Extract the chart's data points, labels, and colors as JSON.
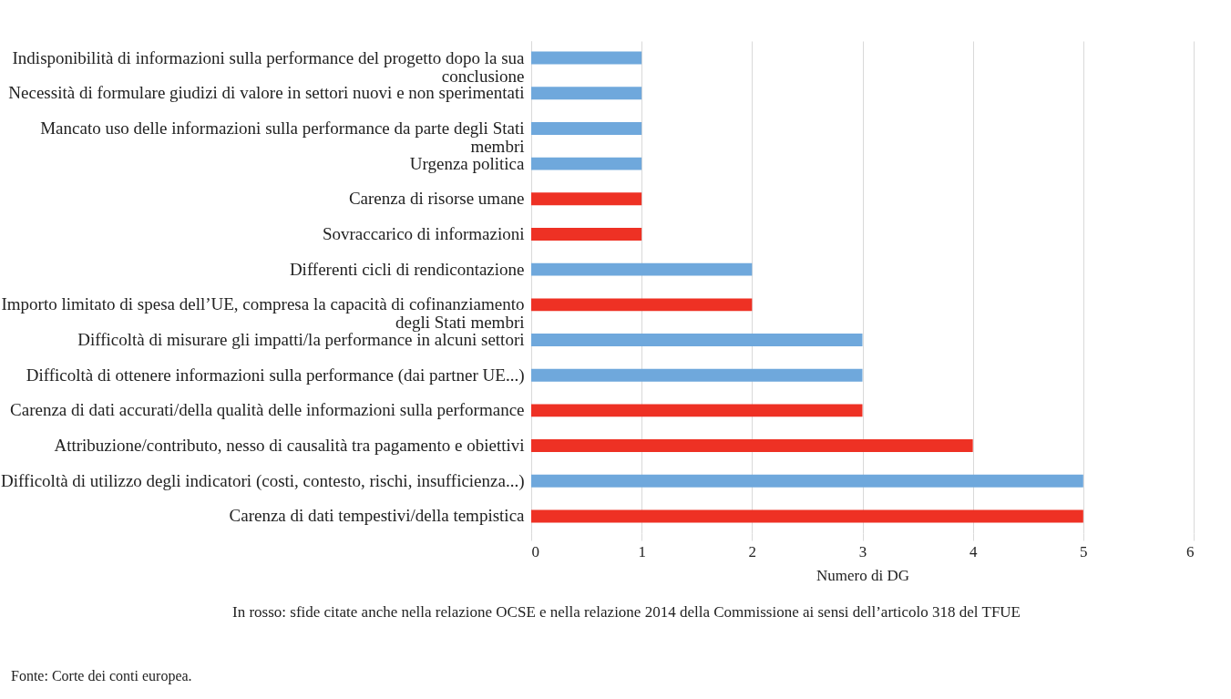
{
  "chart_data": {
    "type": "bar",
    "orientation": "horizontal",
    "xlabel": "Numero di DG",
    "categories": [
      "Indisponibilità di informazioni sulla performance del progetto dopo la sua conclusione",
      "Necessità di formulare giudizi di valore in settori nuovi e non sperimentati",
      "Mancato uso delle informazioni sulla performance da parte degli Stati membri",
      "Urgenza politica",
      "Carenza di risorse umane",
      "Sovraccarico di informazioni",
      "Differenti cicli di rendicontazione",
      "Importo limitato di spesa dell’UE, compresa la capacità di cofinanziamento degli Stati membri",
      "Difficoltà di misurare gli impatti/la performance in alcuni settori",
      "Difficoltà di ottenere informazioni sulla performance (dai partner UE...)",
      "Carenza di dati accurati/della qualità delle informazioni sulla performance",
      "Attribuzione/contributo, nesso di causalità tra pagamento e obiettivi",
      "Difficoltà di utilizzo degli indicatori (costi, contesto, rischi, insufficienza...)",
      "Carenza di dati tempestivi/della tempistica"
    ],
    "values": [
      1,
      1,
      1,
      1,
      1,
      1,
      2,
      2,
      3,
      3,
      3,
      4,
      5,
      5
    ],
    "colors": [
      "#6fa8dc",
      "#6fa8dc",
      "#6fa8dc",
      "#6fa8dc",
      "#ee3124",
      "#ee3124",
      "#6fa8dc",
      "#ee3124",
      "#6fa8dc",
      "#6fa8dc",
      "#ee3124",
      "#ee3124",
      "#6fa8dc",
      "#ee3124"
    ],
    "xlim": [
      0,
      6
    ],
    "xticks": [
      0,
      1,
      2,
      3,
      4,
      5,
      6
    ],
    "grid": "x",
    "annotations": [
      "In rosso: sfide citate anche nella relazione OCSE e nella relazione 2014 della Commissione ai sensi dell’articolo 318 del TFUE",
      "Fonte: Corte dei conti europea."
    ]
  }
}
